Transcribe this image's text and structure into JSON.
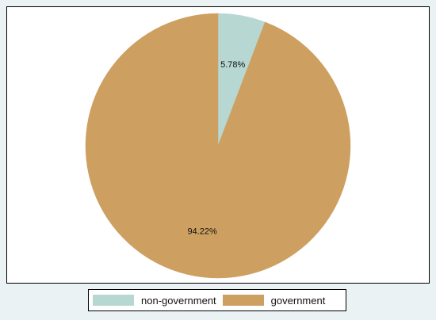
{
  "chart_data": {
    "type": "pie",
    "title": "",
    "slices": [
      {
        "name": "non-government",
        "value": 5.78,
        "label": "5.78%",
        "color": "#b7d7d2"
      },
      {
        "name": "government",
        "value": 94.22,
        "label": "94.22%",
        "color": "#cda061"
      }
    ],
    "start_angle_deg": 0,
    "direction": "clockwise",
    "legend": {
      "position": "bottom",
      "entries": [
        "non-government",
        "government"
      ]
    }
  }
}
